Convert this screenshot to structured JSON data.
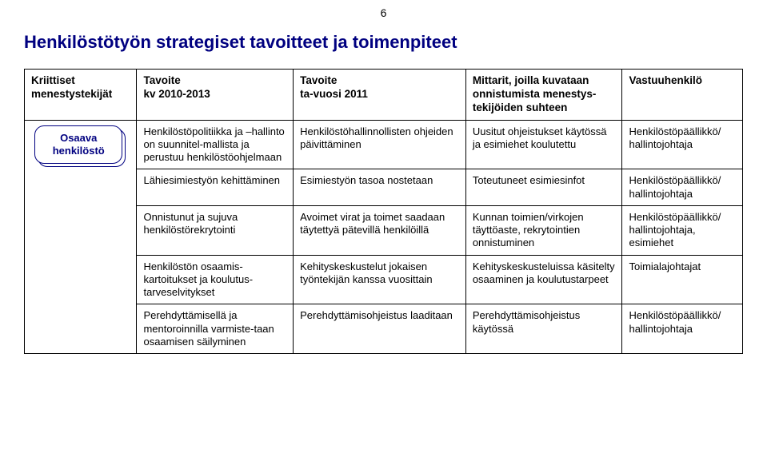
{
  "page_number": "6",
  "title": "Henkilöstötyön strategiset tavoitteet ja toimenpiteet",
  "colors": {
    "heading": "#000080",
    "text": "#000000",
    "border": "#000000",
    "badge_border": "#000080",
    "background": "#ffffff"
  },
  "columns": [
    "Kriittiset menestystekijät",
    "Tavoite\nkv 2010-2013",
    "Tavoite\nta-vuosi 2011",
    "Mittarit, joilla kuvataan onnistumista menestys-tekijöiden suhteen",
    "Vastuuhenkilö"
  ],
  "badge": "Osaava henkilöstö",
  "rows": [
    {
      "c1": "Henkilöstöpolitiikka ja –hallinto on suunnitel-mallista ja perustuu henkilöstöohjelmaan",
      "c2": "Henkilöstöhallinnollisten ohjeiden päivittäminen",
      "c3": "Uusitut ohjeistukset käytössä ja esimiehet koulutettu",
      "c4": "Henkilöstöpäällikkö/ hallintojohtaja"
    },
    {
      "c1": "Lähiesimiestyön kehittäminen",
      "c2": "Esimiestyön tasoa nostetaan",
      "c3": "Toteutuneet esimiesinfot",
      "c4": "Henkilöstöpäällikkö/ hallintojohtaja"
    },
    {
      "c1": "Onnistunut ja sujuva henkilöstörekrytointi",
      "c2": "Avoimet virat ja toimet saadaan täytettyä pätevillä henkilöillä",
      "c3": "Kunnan toimien/virkojen täyttöaste, rekrytointien onnistuminen",
      "c4": "Henkilöstöpäällikkö/ hallintojohtaja, esimiehet"
    },
    {
      "c1": "Henkilöstön osaamis-kartoitukset ja koulutus-tarveselvitykset",
      "c2": "Kehityskeskustelut jokaisen työntekijän kanssa vuosittain",
      "c3": "Kehityskeskusteluissa käsitelty osaaminen ja koulutustarpeet",
      "c4": "Toimialajohtajat"
    },
    {
      "c1": "Perehdyttämisellä ja mentoroinnilla varmiste-taan osaamisen säilyminen",
      "c2": "Perehdyttämisohjeistus laaditaan",
      "c3": "Perehdyttämisohjeistus käytössä",
      "c4": "Henkilöstöpäällikkö/ hallintojohtaja"
    }
  ]
}
